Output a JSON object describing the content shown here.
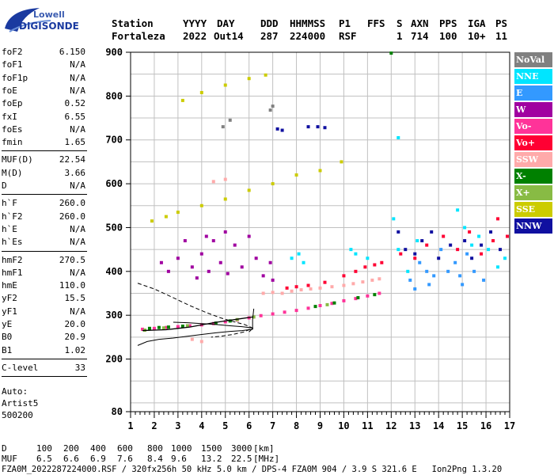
{
  "logo": {
    "line1": "Lowell",
    "line2": "DIGISONDE"
  },
  "header": {
    "labels": [
      "Station",
      "YYYY",
      "DAY",
      "DDD",
      "HHMMSS",
      "P1",
      "FFS",
      "S",
      "AXN",
      "PPS",
      "IGA",
      "PS"
    ],
    "values": [
      "Fortaleza",
      "2022",
      "Out14",
      "287",
      "224000",
      "RSF",
      "1",
      "714",
      "100",
      "10+",
      "11"
    ]
  },
  "params": {
    "group1": [
      [
        "foF2",
        "6.150"
      ],
      [
        "foF1",
        "N/A"
      ],
      [
        "foF1p",
        "N/A"
      ],
      [
        "foE",
        "N/A"
      ],
      [
        "foEp",
        "0.52"
      ],
      [
        "fxI",
        "6.55"
      ],
      [
        "foEs",
        "N/A"
      ],
      [
        "fmin",
        "1.65"
      ]
    ],
    "group2": [
      [
        "MUF(D)",
        "22.54"
      ],
      [
        "M(D)",
        "3.66"
      ],
      [
        "D",
        "N/A"
      ]
    ],
    "group3": [
      [
        "h`F",
        "260.0"
      ],
      [
        "h`F2",
        "260.0"
      ],
      [
        "h`E",
        "N/A"
      ],
      [
        "h`Es",
        "N/A"
      ]
    ],
    "group4": [
      [
        "hmF2",
        "270.5"
      ],
      [
        "hmF1",
        "N/A"
      ],
      [
        "hmE",
        "110.0"
      ],
      [
        "yF2",
        "15.5"
      ],
      [
        "yF1",
        "N/A"
      ],
      [
        "yE",
        "20.0"
      ],
      [
        "B0",
        "20.9"
      ],
      [
        "B1",
        "1.02"
      ]
    ],
    "group5": [
      [
        "C-level",
        "33"
      ]
    ],
    "auto": [
      "Auto:",
      "Artist5",
      "500200"
    ]
  },
  "legend": [
    {
      "label": "NoVal",
      "color": "#808080"
    },
    {
      "label": "NNE",
      "color": "#00e5ff"
    },
    {
      "label": "E",
      "color": "#3399ff"
    },
    {
      "label": "W",
      "color": "#a000a0"
    },
    {
      "label": "Vo-",
      "color": "#ff3399"
    },
    {
      "label": "Vo+",
      "color": "#ff0033"
    },
    {
      "label": "SSW",
      "color": "#ffaaaa"
    },
    {
      "label": "X-",
      "color": "#008000"
    },
    {
      "label": "X+",
      "color": "#88bb44"
    },
    {
      "label": "SSE",
      "color": "#cccc00"
    },
    {
      "label": "NNW",
      "color": "#1010a0"
    }
  ],
  "chart_data": {
    "type": "scatter",
    "xlim": [
      1,
      17
    ],
    "ylim": [
      80,
      900
    ],
    "x_ticks": [
      1,
      2,
      3,
      4,
      5,
      6,
      7,
      8,
      9,
      10,
      11,
      12,
      13,
      14,
      15,
      16,
      17
    ],
    "y_ticks": [
      80,
      200,
      300,
      400,
      500,
      600,
      700,
      800,
      900
    ],
    "grid": true,
    "legend_position": "right",
    "series": [
      {
        "name": "SSE",
        "points": [
          [
            3.0,
            535
          ],
          [
            4.0,
            550
          ],
          [
            5.0,
            565
          ],
          [
            6.0,
            585
          ],
          [
            7.0,
            600
          ],
          [
            8.0,
            620
          ],
          [
            9.0,
            630
          ],
          [
            9.9,
            650
          ],
          [
            3.2,
            790
          ],
          [
            4.0,
            808
          ],
          [
            5.0,
            825
          ],
          [
            6.0,
            840
          ],
          [
            6.7,
            848
          ],
          [
            1.9,
            515
          ],
          [
            2.5,
            525
          ]
        ]
      },
      {
        "name": "W",
        "points": [
          [
            2.3,
            420
          ],
          [
            2.6,
            400
          ],
          [
            3.0,
            430
          ],
          [
            3.3,
            470
          ],
          [
            3.6,
            410
          ],
          [
            3.8,
            385
          ],
          [
            4.0,
            440
          ],
          [
            4.3,
            400
          ],
          [
            4.5,
            470
          ],
          [
            4.8,
            420
          ],
          [
            5.1,
            395
          ],
          [
            5.4,
            460
          ],
          [
            5.7,
            410
          ],
          [
            6.0,
            480
          ],
          [
            6.3,
            430
          ],
          [
            6.6,
            390
          ],
          [
            6.9,
            420
          ],
          [
            7.0,
            380
          ],
          [
            5.0,
            490
          ],
          [
            4.2,
            480
          ]
        ]
      },
      {
        "name": "NNE",
        "points": [
          [
            7.8,
            430
          ],
          [
            8.1,
            440
          ],
          [
            8.3,
            420
          ],
          [
            10.3,
            450
          ],
          [
            10.5,
            440
          ],
          [
            11.0,
            430
          ],
          [
            12.3,
            450
          ],
          [
            12.7,
            400
          ],
          [
            13.1,
            470
          ],
          [
            14.8,
            540
          ],
          [
            15.1,
            500
          ],
          [
            15.4,
            460
          ],
          [
            15.7,
            480
          ],
          [
            16.1,
            450
          ],
          [
            16.5,
            410
          ],
          [
            16.8,
            430
          ],
          [
            12.1,
            520
          ],
          [
            12.3,
            705
          ]
        ]
      },
      {
        "name": "E",
        "points": [
          [
            12.8,
            380
          ],
          [
            13.2,
            420
          ],
          [
            13.5,
            400
          ],
          [
            13.8,
            390
          ],
          [
            14.1,
            450
          ],
          [
            14.4,
            400
          ],
          [
            14.7,
            420
          ],
          [
            15.0,
            370
          ],
          [
            15.2,
            440
          ],
          [
            15.5,
            400
          ],
          [
            15.9,
            380
          ],
          [
            13.0,
            360
          ],
          [
            13.6,
            370
          ],
          [
            14.9,
            390
          ]
        ]
      },
      {
        "name": "NNW",
        "points": [
          [
            12.3,
            490
          ],
          [
            12.6,
            450
          ],
          [
            13.0,
            440
          ],
          [
            13.3,
            470
          ],
          [
            13.7,
            490
          ],
          [
            14.0,
            430
          ],
          [
            14.5,
            460
          ],
          [
            15.1,
            470
          ],
          [
            15.4,
            430
          ],
          [
            15.8,
            460
          ],
          [
            16.2,
            490
          ],
          [
            16.6,
            450
          ],
          [
            7.2,
            725
          ],
          [
            7.4,
            722
          ],
          [
            8.5,
            730
          ],
          [
            8.9,
            730
          ],
          [
            9.2,
            728
          ]
        ]
      },
      {
        "name": "SSW",
        "points": [
          [
            6.6,
            350
          ],
          [
            7.0,
            352
          ],
          [
            7.4,
            350
          ],
          [
            7.8,
            355
          ],
          [
            8.2,
            358
          ],
          [
            8.6,
            360
          ],
          [
            9.0,
            362
          ],
          [
            9.5,
            365
          ],
          [
            10.0,
            368
          ],
          [
            10.4,
            372
          ],
          [
            10.8,
            376
          ],
          [
            11.2,
            380
          ],
          [
            11.5,
            383
          ],
          [
            3.6,
            245
          ],
          [
            4.0,
            240
          ],
          [
            4.5,
            605
          ],
          [
            5.0,
            610
          ]
        ]
      },
      {
        "name": "Vo+",
        "points": [
          [
            7.6,
            362
          ],
          [
            8.0,
            365
          ],
          [
            8.5,
            368
          ],
          [
            9.2,
            375
          ],
          [
            10.0,
            390
          ],
          [
            10.5,
            400
          ],
          [
            10.9,
            410
          ],
          [
            11.3,
            415
          ],
          [
            11.6,
            420
          ],
          [
            12.4,
            440
          ],
          [
            13.0,
            430
          ],
          [
            13.5,
            460
          ],
          [
            14.2,
            480
          ],
          [
            14.8,
            450
          ],
          [
            15.3,
            490
          ],
          [
            15.8,
            440
          ],
          [
            16.3,
            470
          ],
          [
            16.9,
            480
          ],
          [
            16.5,
            520
          ]
        ]
      },
      {
        "name": "Vo-",
        "points": [
          [
            1.5,
            268
          ],
          [
            2.0,
            270
          ],
          [
            2.5,
            272
          ],
          [
            3.0,
            274
          ],
          [
            3.5,
            276
          ],
          [
            4.0,
            278
          ],
          [
            4.5,
            281
          ],
          [
            5.0,
            285
          ],
          [
            5.5,
            289
          ],
          [
            6.0,
            294
          ],
          [
            6.5,
            299
          ],
          [
            7.0,
            303
          ],
          [
            7.5,
            307
          ],
          [
            8.0,
            311
          ],
          [
            8.5,
            316
          ],
          [
            9.0,
            322
          ],
          [
            9.5,
            327
          ],
          [
            10.0,
            333
          ],
          [
            10.5,
            338
          ],
          [
            11.0,
            344
          ],
          [
            11.5,
            350
          ]
        ]
      },
      {
        "name": "X-",
        "points": [
          [
            1.8,
            270
          ],
          [
            2.2,
            272
          ],
          [
            2.6,
            273
          ],
          [
            3.2,
            275
          ],
          [
            4.6,
            282
          ],
          [
            5.2,
            287
          ],
          [
            8.8,
            320
          ],
          [
            9.6,
            328
          ],
          [
            10.6,
            340
          ],
          [
            11.3,
            347
          ],
          [
            12.0,
            898
          ]
        ]
      },
      {
        "name": "X+",
        "points": [
          [
            1.6,
            266
          ],
          [
            2.4,
            271
          ],
          [
            3.4,
            276
          ],
          [
            5.5,
            290
          ],
          [
            6.2,
            296
          ],
          [
            9.3,
            324
          ]
        ]
      },
      {
        "name": "NoVal",
        "points": [
          [
            4.9,
            730
          ],
          [
            5.2,
            745
          ],
          [
            6.9,
            768
          ],
          [
            7.0,
            777
          ]
        ]
      }
    ],
    "lines": [
      {
        "name": "profile",
        "style": "solid",
        "points": [
          [
            1.3,
            231
          ],
          [
            1.7,
            240
          ],
          [
            2.2,
            245
          ],
          [
            2.8,
            248
          ],
          [
            3.4,
            252
          ],
          [
            4.0,
            256
          ],
          [
            4.6,
            260
          ],
          [
            5.2,
            263
          ],
          [
            5.7,
            265
          ],
          [
            6.15,
            268
          ],
          [
            6.15,
            271
          ],
          [
            5.7,
            274
          ],
          [
            5.2,
            276
          ],
          [
            4.6,
            279
          ],
          [
            4.0,
            281
          ],
          [
            3.4,
            283
          ],
          [
            2.8,
            284
          ]
        ]
      },
      {
        "name": "profile-hook",
        "style": "solid",
        "points": [
          [
            6.0,
            262
          ],
          [
            6.15,
            270
          ],
          [
            6.15,
            290
          ],
          [
            6.2,
            315
          ]
        ]
      },
      {
        "name": "model",
        "style": "dashed",
        "points": [
          [
            1.3,
            373
          ],
          [
            2.0,
            360
          ],
          [
            2.8,
            340
          ],
          [
            3.5,
            322
          ],
          [
            4.2,
            306
          ],
          [
            4.8,
            294
          ],
          [
            5.3,
            286
          ],
          [
            5.8,
            279
          ],
          [
            6.15,
            271
          ],
          [
            5.8,
            262
          ],
          [
            5.3,
            256
          ],
          [
            4.8,
            252
          ],
          [
            4.4,
            250
          ]
        ]
      }
    ],
    "trace": {
      "name": "h`F2",
      "style": "solid",
      "points": [
        [
          1.5,
          265
        ],
        [
          2.0,
          266
        ],
        [
          2.5,
          267
        ],
        [
          3.0,
          270
        ],
        [
          3.5,
          273
        ],
        [
          4.0,
          278
        ],
        [
          4.5,
          283
        ],
        [
          5.0,
          287
        ],
        [
          5.5,
          291
        ],
        [
          6.15,
          296
        ]
      ]
    }
  },
  "footer": {
    "d_label": "D",
    "d_values": [
      "100",
      "200",
      "400",
      "600",
      "800",
      "1000",
      "1500",
      "3000",
      "[km]"
    ],
    "muf_label": "MUF",
    "muf_values": [
      "6.5",
      "6.6",
      "6.9",
      "7.6",
      "8.4",
      "9.6",
      "13.2",
      "22.5",
      "[MHz]"
    ],
    "info": "FZA0M_2022287224000.RSF / 320fx256h 50 kHz 5.0 km / DPS-4 FZA0M 904 / 3.9 S 321.6 E   Ion2Png 1.3.20"
  }
}
